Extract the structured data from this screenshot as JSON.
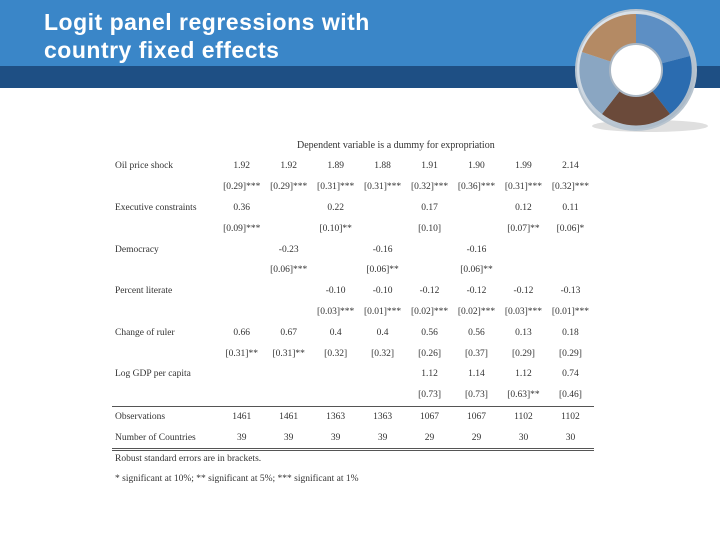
{
  "slide": {
    "title_line1": "Logit panel regressions with",
    "title_line2": "country fixed effects"
  },
  "table": {
    "dependent_variable": "Dependent variable is a dummy for expropriation",
    "rows": [
      {
        "label": "Oil price shock",
        "cells": [
          "1.92",
          "1.92",
          "1.89",
          "1.88",
          "1.91",
          "1.90",
          "1.99",
          "2.14"
        ]
      },
      {
        "label": "",
        "cells": [
          "[0.29]***",
          "[0.29]***",
          "[0.31]***",
          "[0.31]***",
          "[0.32]***",
          "[0.36]***",
          "[0.31]***",
          "[0.32]***"
        ]
      },
      {
        "label": "Executive constraints",
        "cells": [
          "0.36",
          "",
          "0.22",
          "",
          "0.17",
          "",
          "0.12",
          "0.11"
        ]
      },
      {
        "label": "",
        "cells": [
          "[0.09]***",
          "",
          "[0.10]**",
          "",
          "[0.10]",
          "",
          "[0.07]**",
          "[0.06]*"
        ]
      },
      {
        "label": "Democracy",
        "cells": [
          "",
          "-0.23",
          "",
          "-0.16",
          "",
          "-0.16",
          "",
          ""
        ]
      },
      {
        "label": "",
        "cells": [
          "",
          "[0.06]***",
          "",
          "[0.06]**",
          "",
          "[0.06]**",
          "",
          ""
        ]
      },
      {
        "label": "Percent literate",
        "cells": [
          "",
          "",
          "-0.10",
          "-0.10",
          "-0.12",
          "-0.12",
          "-0.12",
          "-0.13"
        ]
      },
      {
        "label": "",
        "cells": [
          "",
          "",
          "[0.03]***",
          "[0.01]***",
          "[0.02]***",
          "[0.02]***",
          "[0.03]***",
          "[0.01]***"
        ]
      },
      {
        "label": "Change of ruler",
        "cells": [
          "0.66",
          "0.67",
          "0.4",
          "0.4",
          "0.56",
          "0.56",
          "0.13",
          "0.18"
        ]
      },
      {
        "label": "",
        "cells": [
          "[0.31]**",
          "[0.31]**",
          "[0.32]",
          "[0.32]",
          "[0.26]",
          "[0.37]",
          "[0.29]",
          "[0.29]"
        ]
      },
      {
        "label": "Log GDP per capita",
        "cells": [
          "",
          "",
          "",
          "",
          "1.12",
          "1.14",
          "1.12",
          "0.74"
        ]
      },
      {
        "label": "",
        "cells": [
          "",
          "",
          "",
          "",
          "[0.73]",
          "[0.73]",
          "[0.63]**",
          "[0.46]"
        ]
      },
      {
        "label": "Observations",
        "cells": [
          "1461",
          "1461",
          "1363",
          "1363",
          "1067",
          "1067",
          "1102",
          "1102"
        ]
      },
      {
        "label": "Number of Countries",
        "cells": [
          "39",
          "39",
          "39",
          "39",
          "29",
          "29",
          "30",
          "30"
        ]
      }
    ],
    "notes": [
      "Robust standard errors are in brackets.",
      "* significant at 10%; ** significant at 5%; *** significant at 1%"
    ]
  },
  "colors": {
    "banner": "#3a86c8",
    "banner_stripe": "#1e4f84",
    "title_text": "#ffffff"
  },
  "icons": [
    "globe-logo-icon"
  ]
}
